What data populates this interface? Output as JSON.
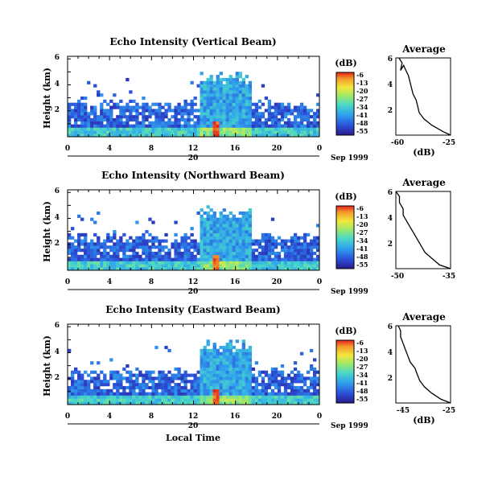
{
  "chart_data": [
    {
      "type": "heatmap",
      "title": "Echo Intensity (Vertical Beam)",
      "ylabel": "Height (km)",
      "xlabel": "",
      "x_ticks": [
        "0",
        "4",
        "8",
        "12",
        "16",
        "20",
        "0"
      ],
      "x_range": [
        0,
        24
      ],
      "y_ticks": [
        "2",
        "4",
        "6"
      ],
      "y_range": [
        0,
        6.2
      ],
      "date_day": "20",
      "date_label": "Sep 1999",
      "colorbar": {
        "unit": "(dB)",
        "ticks": [
          "-6",
          "-13",
          "-20",
          "-27",
          "-34",
          "-41",
          "-48",
          "-55"
        ]
      },
      "average_profile": {
        "title": "Average",
        "xlabel": "(dB)",
        "x_ticks": [
          "-60",
          "-25"
        ],
        "x_range": [
          -60,
          -25
        ],
        "y_ticks": [
          "2",
          "4",
          "6"
        ],
        "y_range": [
          0,
          6.2
        ],
        "x": [
          -25,
          -30,
          -37,
          -42,
          -45,
          -46,
          -47,
          -49,
          -50,
          -51,
          -52,
          -54,
          -55,
          -57,
          -56,
          -57,
          -58
        ],
        "y": [
          0.0,
          0.3,
          0.8,
          1.3,
          1.8,
          2.3,
          2.8,
          3.3,
          3.8,
          4.3,
          4.8,
          5.3,
          5.6,
          5.2,
          5.8,
          6.0,
          6.2
        ]
      }
    },
    {
      "type": "heatmap",
      "title": "Echo Intensity (Northward Beam)",
      "ylabel": "Height (km)",
      "xlabel": "",
      "x_ticks": [
        "0",
        "4",
        "8",
        "12",
        "16",
        "20",
        "0"
      ],
      "x_range": [
        0,
        24
      ],
      "y_ticks": [
        "2",
        "4",
        "6"
      ],
      "y_range": [
        0,
        6.2
      ],
      "date_day": "20",
      "date_label": "Sep 1999",
      "colorbar": {
        "unit": "(dB)",
        "ticks": [
          "-6",
          "-13",
          "-20",
          "-27",
          "-34",
          "-41",
          "-48",
          "-55"
        ]
      },
      "average_profile": {
        "title": "Average",
        "xlabel": "",
        "x_ticks": [
          "-50",
          "-35"
        ],
        "x_range": [
          -50,
          -35
        ],
        "y_ticks": [
          "2",
          "4",
          "6"
        ],
        "y_range": [
          0,
          6.2
        ],
        "x": [
          -35,
          -38,
          -40,
          -42,
          -43,
          -44,
          -45,
          -46,
          -47,
          -48,
          -48,
          -49,
          -49,
          -50
        ],
        "y": [
          0.0,
          0.3,
          0.8,
          1.3,
          1.8,
          2.3,
          2.8,
          3.3,
          3.8,
          4.3,
          4.8,
          5.3,
          5.8,
          6.2
        ]
      }
    },
    {
      "type": "heatmap",
      "title": "Echo Intensity (Eastward Beam)",
      "ylabel": "Height (km)",
      "xlabel": "Local Time",
      "x_ticks": [
        "0",
        "4",
        "8",
        "12",
        "16",
        "20",
        "0"
      ],
      "x_range": [
        0,
        24
      ],
      "y_ticks": [
        "2",
        "4",
        "6"
      ],
      "y_range": [
        0,
        6.2
      ],
      "date_day": "20",
      "date_label": "Sep 1999",
      "colorbar": {
        "unit": "(dB)",
        "ticks": [
          "-6",
          "-13",
          "-20",
          "-27",
          "-34",
          "-41",
          "-48",
          "-55"
        ]
      },
      "average_profile": {
        "title": "Average",
        "xlabel": "(dB)",
        "x_ticks": [
          "-45",
          "-25"
        ],
        "x_range": [
          -48,
          -25
        ],
        "y_ticks": [
          "2",
          "4",
          "6"
        ],
        "y_range": [
          0,
          6.2
        ],
        "x": [
          -25,
          -29,
          -33,
          -36,
          -38,
          -39,
          -40,
          -42,
          -43,
          -44,
          -45,
          -46,
          -46,
          -47
        ],
        "y": [
          0.0,
          0.3,
          0.8,
          1.3,
          1.8,
          2.3,
          2.8,
          3.3,
          3.8,
          4.3,
          4.8,
          5.3,
          5.8,
          6.2
        ]
      }
    }
  ]
}
